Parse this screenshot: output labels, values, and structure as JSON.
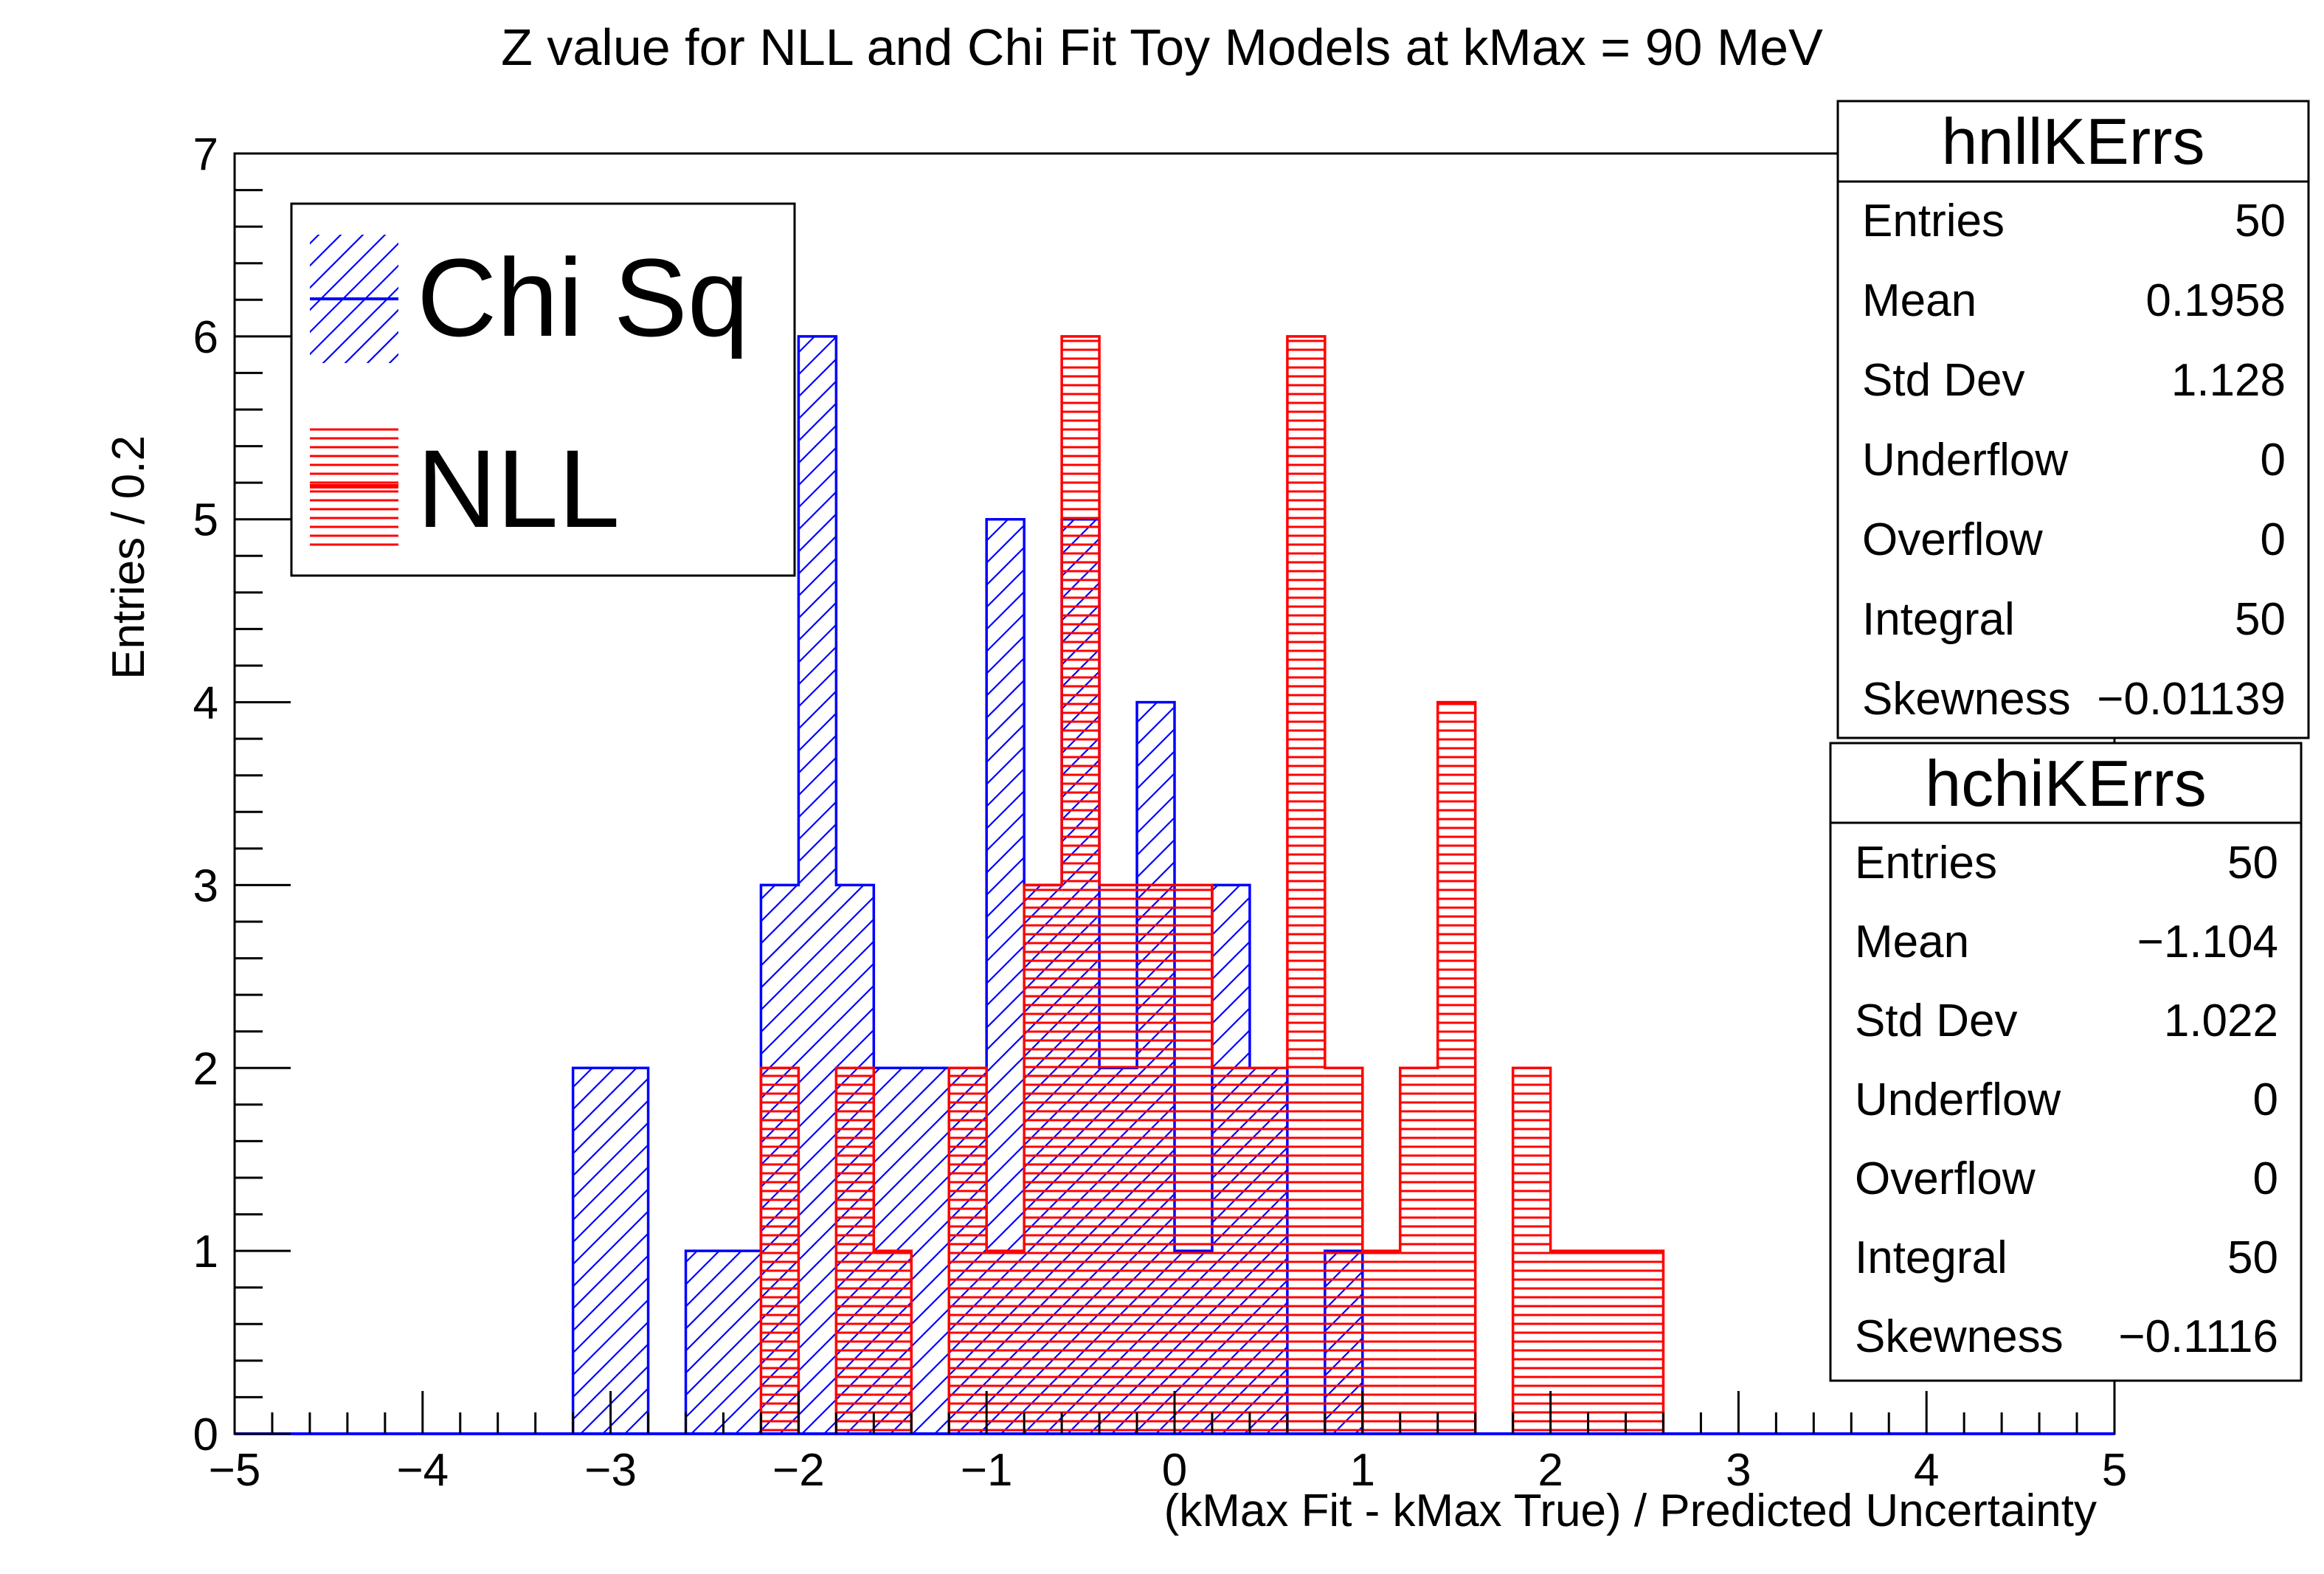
{
  "chart_data": {
    "type": "histogram",
    "title": "Z value for NLL and Chi Fit Toy Models at kMax = 90 MeV",
    "xlabel": "(kMax Fit - kMax True) / Predicted Uncertainty",
    "ylabel": "Entries / 0.2",
    "xlim": [
      -5,
      5
    ],
    "ylim": [
      0,
      7
    ],
    "bin_width": 0.2,
    "x_ticks": [
      -5,
      -4,
      -3,
      -2,
      -1,
      0,
      1,
      2,
      3,
      4,
      5
    ],
    "x_tick_labels": [
      "−5",
      "−4",
      "−3",
      "−2",
      "−1",
      "0",
      "1",
      "2",
      "3",
      "4",
      "5"
    ],
    "y_ticks": [
      0,
      1,
      2,
      3,
      4,
      5,
      6,
      7
    ],
    "y_tick_labels": [
      "0",
      "1",
      "2",
      "3",
      "4",
      "5",
      "6",
      "7"
    ],
    "grid": false,
    "legend": {
      "placement": "top-left",
      "entries": [
        {
          "label": "Chi Sq",
          "color": "#0000ff",
          "fill": "diagonal-hatch"
        },
        {
          "label": "NLL",
          "color": "#ff0000",
          "fill": "horizontal-hatch"
        }
      ]
    },
    "series": [
      {
        "name": "Chi Sq",
        "color": "#0000ff",
        "fill": "diagonal-hatch",
        "bin_edges": [
          -3.2,
          -3.0,
          -2.8,
          -2.6,
          -2.4,
          -2.2,
          -2.0,
          -1.8,
          -1.6,
          -1.4,
          -1.2,
          -1.0,
          -0.8,
          -0.6,
          -0.4,
          -0.2,
          0.0,
          0.2,
          0.4,
          0.6,
          0.8,
          1.0
        ],
        "counts": [
          2,
          2,
          0,
          1,
          1,
          3,
          6,
          3,
          2,
          2,
          2,
          5,
          3,
          5,
          2,
          4,
          1,
          3,
          2,
          0,
          1
        ]
      },
      {
        "name": "NLL",
        "color": "#ff0000",
        "fill": "horizontal-hatch",
        "bin_edges": [
          -2.2,
          -2.0,
          -1.8,
          -1.6,
          -1.4,
          -1.2,
          -1.0,
          -0.8,
          -0.6,
          -0.4,
          -0.2,
          0.0,
          0.2,
          0.4,
          0.6,
          0.8,
          1.0,
          1.2,
          1.4,
          1.6,
          1.8,
          2.0,
          2.2,
          2.4,
          2.6
        ],
        "counts": [
          2,
          0,
          2,
          1,
          0,
          2,
          1,
          3,
          6,
          3,
          3,
          3,
          2,
          2,
          6,
          2,
          1,
          2,
          4,
          0,
          2,
          1,
          1,
          1
        ]
      }
    ],
    "stats_boxes": [
      {
        "name": "hnllKErrs",
        "rows": [
          {
            "label": "Entries",
            "value": "50"
          },
          {
            "label": "Mean",
            "value": "0.1958"
          },
          {
            "label": "Std Dev",
            "value": "1.128"
          },
          {
            "label": "Underflow",
            "value": "0"
          },
          {
            "label": "Overflow",
            "value": "0"
          },
          {
            "label": "Integral",
            "value": "50"
          },
          {
            "label": "Skewness",
            "value": "−0.01139"
          }
        ]
      },
      {
        "name": "hchiKErrs",
        "rows": [
          {
            "label": "Entries",
            "value": "50"
          },
          {
            "label": "Mean",
            "value": "−1.104"
          },
          {
            "label": "Std Dev",
            "value": "1.022"
          },
          {
            "label": "Underflow",
            "value": "0"
          },
          {
            "label": "Overflow",
            "value": "0"
          },
          {
            "label": "Integral",
            "value": "50"
          },
          {
            "label": "Skewness",
            "value": "−0.1116"
          }
        ]
      }
    ]
  }
}
